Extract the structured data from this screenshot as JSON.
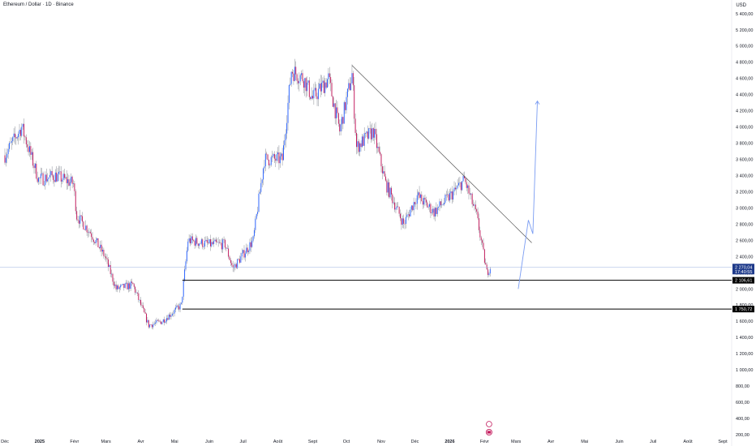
{
  "header": {
    "title": "Ethereum / Dollar · 1D · Binance",
    "currency": "USD"
  },
  "chart_data": {
    "type": "candlestick",
    "symbol": "Ethereum / Dollar",
    "interval": "1D",
    "exchange": "Binance",
    "y_axis": {
      "range": [
        200,
        5400
      ],
      "ticks": [
        5400,
        5200,
        5000,
        4800,
        4600,
        4400,
        4200,
        4000,
        3800,
        3600,
        3400,
        3200,
        3000,
        2800,
        2600,
        2400,
        2200,
        2000,
        1800,
        1600,
        1400,
        1200,
        1000,
        800,
        600,
        400,
        200
      ],
      "tick_labels": [
        "5 400,00",
        "5 200,00",
        "5 000,00",
        "4 800,00",
        "4 600,00",
        "4 400,00",
        "4 200,00",
        "4 000,00",
        "3 800,00",
        "3 600,00",
        "3 400,00",
        "3 200,00",
        "3 000,00",
        "2 800,00",
        "2 600,00",
        "2 400,00",
        "2 200,00",
        "2 000,00",
        "1 800,00",
        "1 600,00",
        "1 400,00",
        "1 200,00",
        "1 000,00",
        "800,00",
        "600,00",
        "400,00",
        "200,00"
      ]
    },
    "x_axis": {
      "labels": [
        "Déc",
        "2025",
        "Févr",
        "Mars",
        "Avr",
        "Mai",
        "Juin",
        "Juil",
        "Août",
        "Sept",
        "Oct",
        "Nov",
        "Déc",
        "2026",
        "Févr",
        "Mars",
        "Avr",
        "Mai",
        "Juin",
        "Juil",
        "Août",
        "Sept"
      ]
    },
    "price_path": [
      {
        "date": "2024-12-01",
        "price": 3650
      },
      {
        "date": "2024-12-16",
        "price": 4000
      },
      {
        "date": "2024-12-31",
        "price": 3350
      },
      {
        "date": "2025-01-15",
        "price": 3400
      },
      {
        "date": "2025-01-31",
        "price": 3300
      },
      {
        "date": "2025-02-03",
        "price": 2900
      },
      {
        "date": "2025-02-15",
        "price": 2700
      },
      {
        "date": "2025-02-28",
        "price": 2400
      },
      {
        "date": "2025-03-10",
        "price": 2000
      },
      {
        "date": "2025-03-25",
        "price": 2050
      },
      {
        "date": "2025-04-08",
        "price": 1550
      },
      {
        "date": "2025-04-20",
        "price": 1600
      },
      {
        "date": "2025-05-07",
        "price": 1800
      },
      {
        "date": "2025-05-13",
        "price": 2600
      },
      {
        "date": "2025-06-01",
        "price": 2550
      },
      {
        "date": "2025-06-15",
        "price": 2550
      },
      {
        "date": "2025-06-22",
        "price": 2250
      },
      {
        "date": "2025-07-10",
        "price": 2600
      },
      {
        "date": "2025-07-20",
        "price": 3600
      },
      {
        "date": "2025-08-05",
        "price": 3600
      },
      {
        "date": "2025-08-13",
        "price": 4700
      },
      {
        "date": "2025-08-24",
        "price": 4600
      },
      {
        "date": "2025-09-01",
        "price": 4350
      },
      {
        "date": "2025-09-15",
        "price": 4600
      },
      {
        "date": "2025-09-25",
        "price": 3950
      },
      {
        "date": "2025-10-06",
        "price": 4650
      },
      {
        "date": "2025-10-10",
        "price": 3750
      },
      {
        "date": "2025-10-25",
        "price": 3950
      },
      {
        "date": "2025-11-05",
        "price": 3300
      },
      {
        "date": "2025-11-21",
        "price": 2800
      },
      {
        "date": "2025-12-03",
        "price": 3150
      },
      {
        "date": "2025-12-18",
        "price": 2950
      },
      {
        "date": "2026-01-05",
        "price": 3200
      },
      {
        "date": "2026-01-14",
        "price": 3350
      },
      {
        "date": "2026-01-25",
        "price": 2900
      },
      {
        "date": "2026-02-03",
        "price": 2200
      },
      {
        "date": "2026-02-06",
        "price": 2270
      }
    ],
    "annotations": {
      "current_price": {
        "value": 2270.04,
        "label": "2 270,04",
        "sub_label": "17:40:55"
      },
      "support_levels": [
        {
          "value": 2106.61,
          "label": "2 106,61",
          "from_date": "2025-05-08"
        },
        {
          "value": 1750.72,
          "label": "1 750,72",
          "from_date": "2025-05-08"
        }
      ],
      "trendline": {
        "from": {
          "date": "2025-10-06",
          "price": 4760
        },
        "to": {
          "date": "2026-03-15",
          "price": 2570
        }
      },
      "projection_arrow": [
        {
          "date": "2026-03-03",
          "price": 2000
        },
        {
          "date": "2026-03-12",
          "price": 2850
        },
        {
          "date": "2026-03-16",
          "price": 2680
        },
        {
          "date": "2026-03-20",
          "price": 4320
        }
      ]
    },
    "colors": {
      "up": "#2962ff",
      "down": "#c2185b",
      "trendline": "#555555",
      "arrow": "#7a9cf2",
      "level": "#000000",
      "current": "#1e3a8a"
    }
  }
}
